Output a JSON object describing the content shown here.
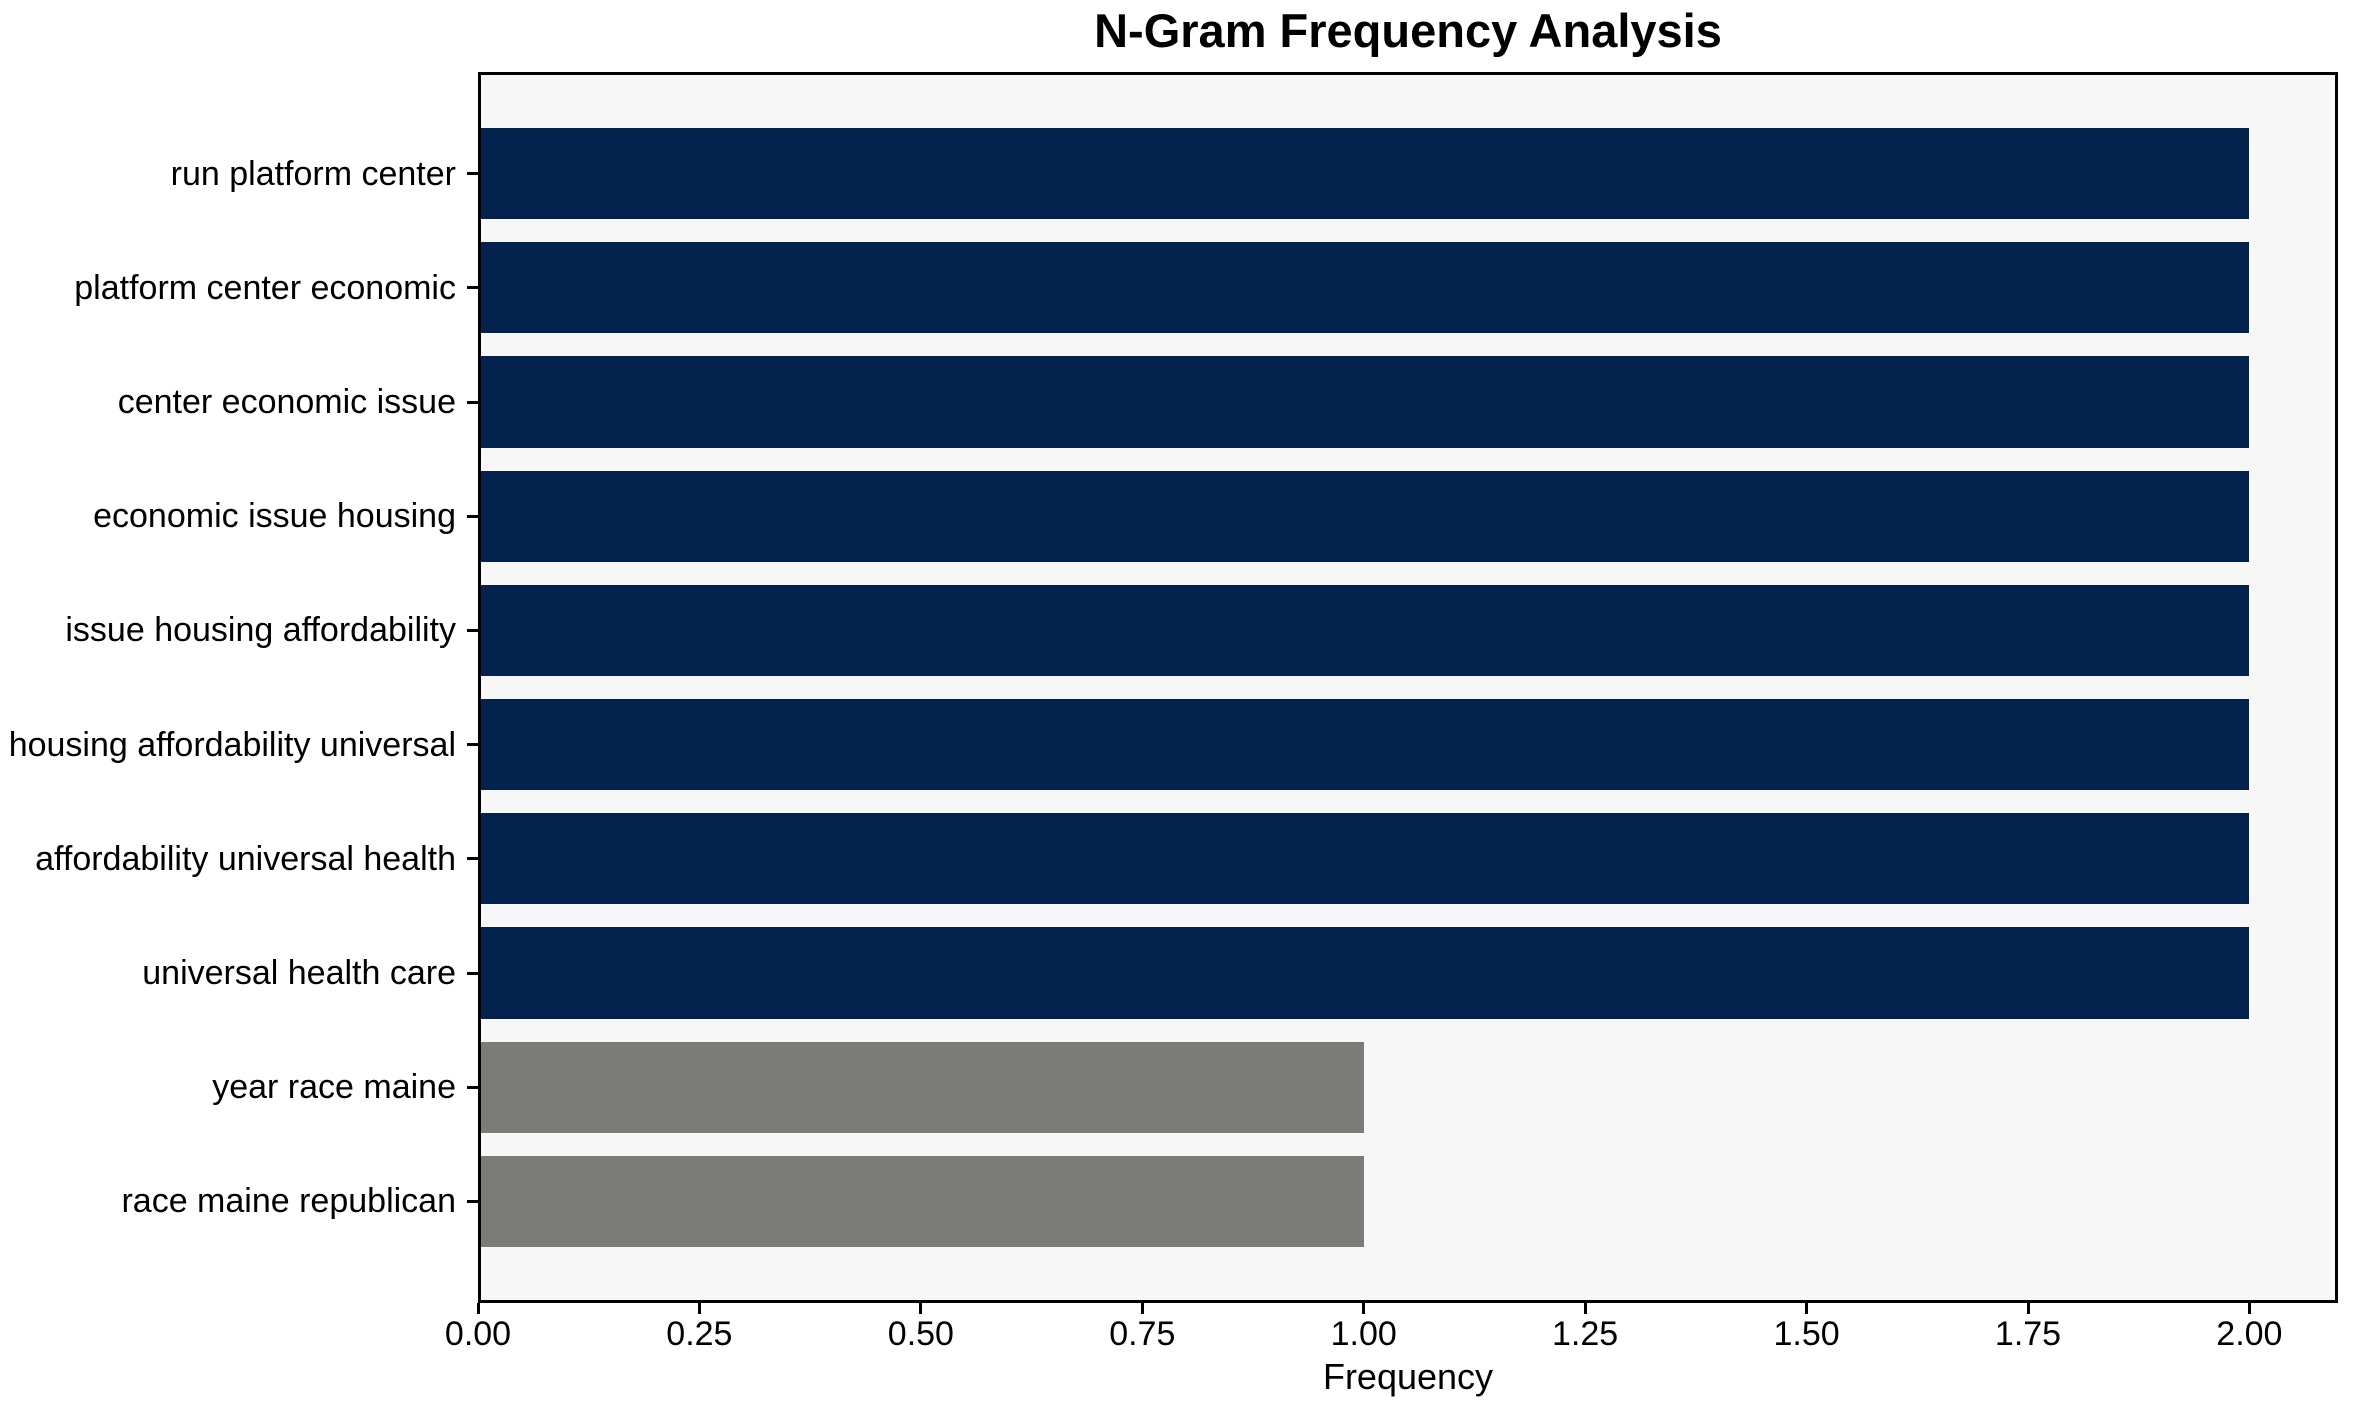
{
  "figure": {
    "background": "#ffffff",
    "plot_background": "#f7f7f7",
    "axis_color": "#000000"
  },
  "chart_data": {
    "type": "bar",
    "orientation": "horizontal",
    "title": "N-Gram Frequency Analysis",
    "xlabel": "Frequency",
    "ylabel": "",
    "categories": [
      "run platform center",
      "platform center economic",
      "center economic issue",
      "economic issue housing",
      "issue housing affordability",
      "housing affordability universal",
      "affordability universal health",
      "universal health care",
      "year race maine",
      "race maine republican"
    ],
    "values": [
      2,
      2,
      2,
      2,
      2,
      2,
      2,
      2,
      1,
      1
    ],
    "bar_colors": [
      "#03234e",
      "#03234e",
      "#03234e",
      "#03234e",
      "#03234e",
      "#03234e",
      "#03234e",
      "#03234e",
      "#7b7b78",
      "#7b7b78"
    ],
    "xlim": [
      0,
      2.1
    ],
    "xticks": [
      0,
      0.25,
      0.5,
      0.75,
      1.0,
      1.25,
      1.5,
      1.75,
      2.0
    ],
    "xtick_labels": [
      "0.00",
      "0.25",
      "0.50",
      "0.75",
      "1.00",
      "1.25",
      "1.50",
      "1.75",
      "2.00"
    ],
    "bar_height_frac": 0.8,
    "grid": false,
    "legend": "none"
  }
}
